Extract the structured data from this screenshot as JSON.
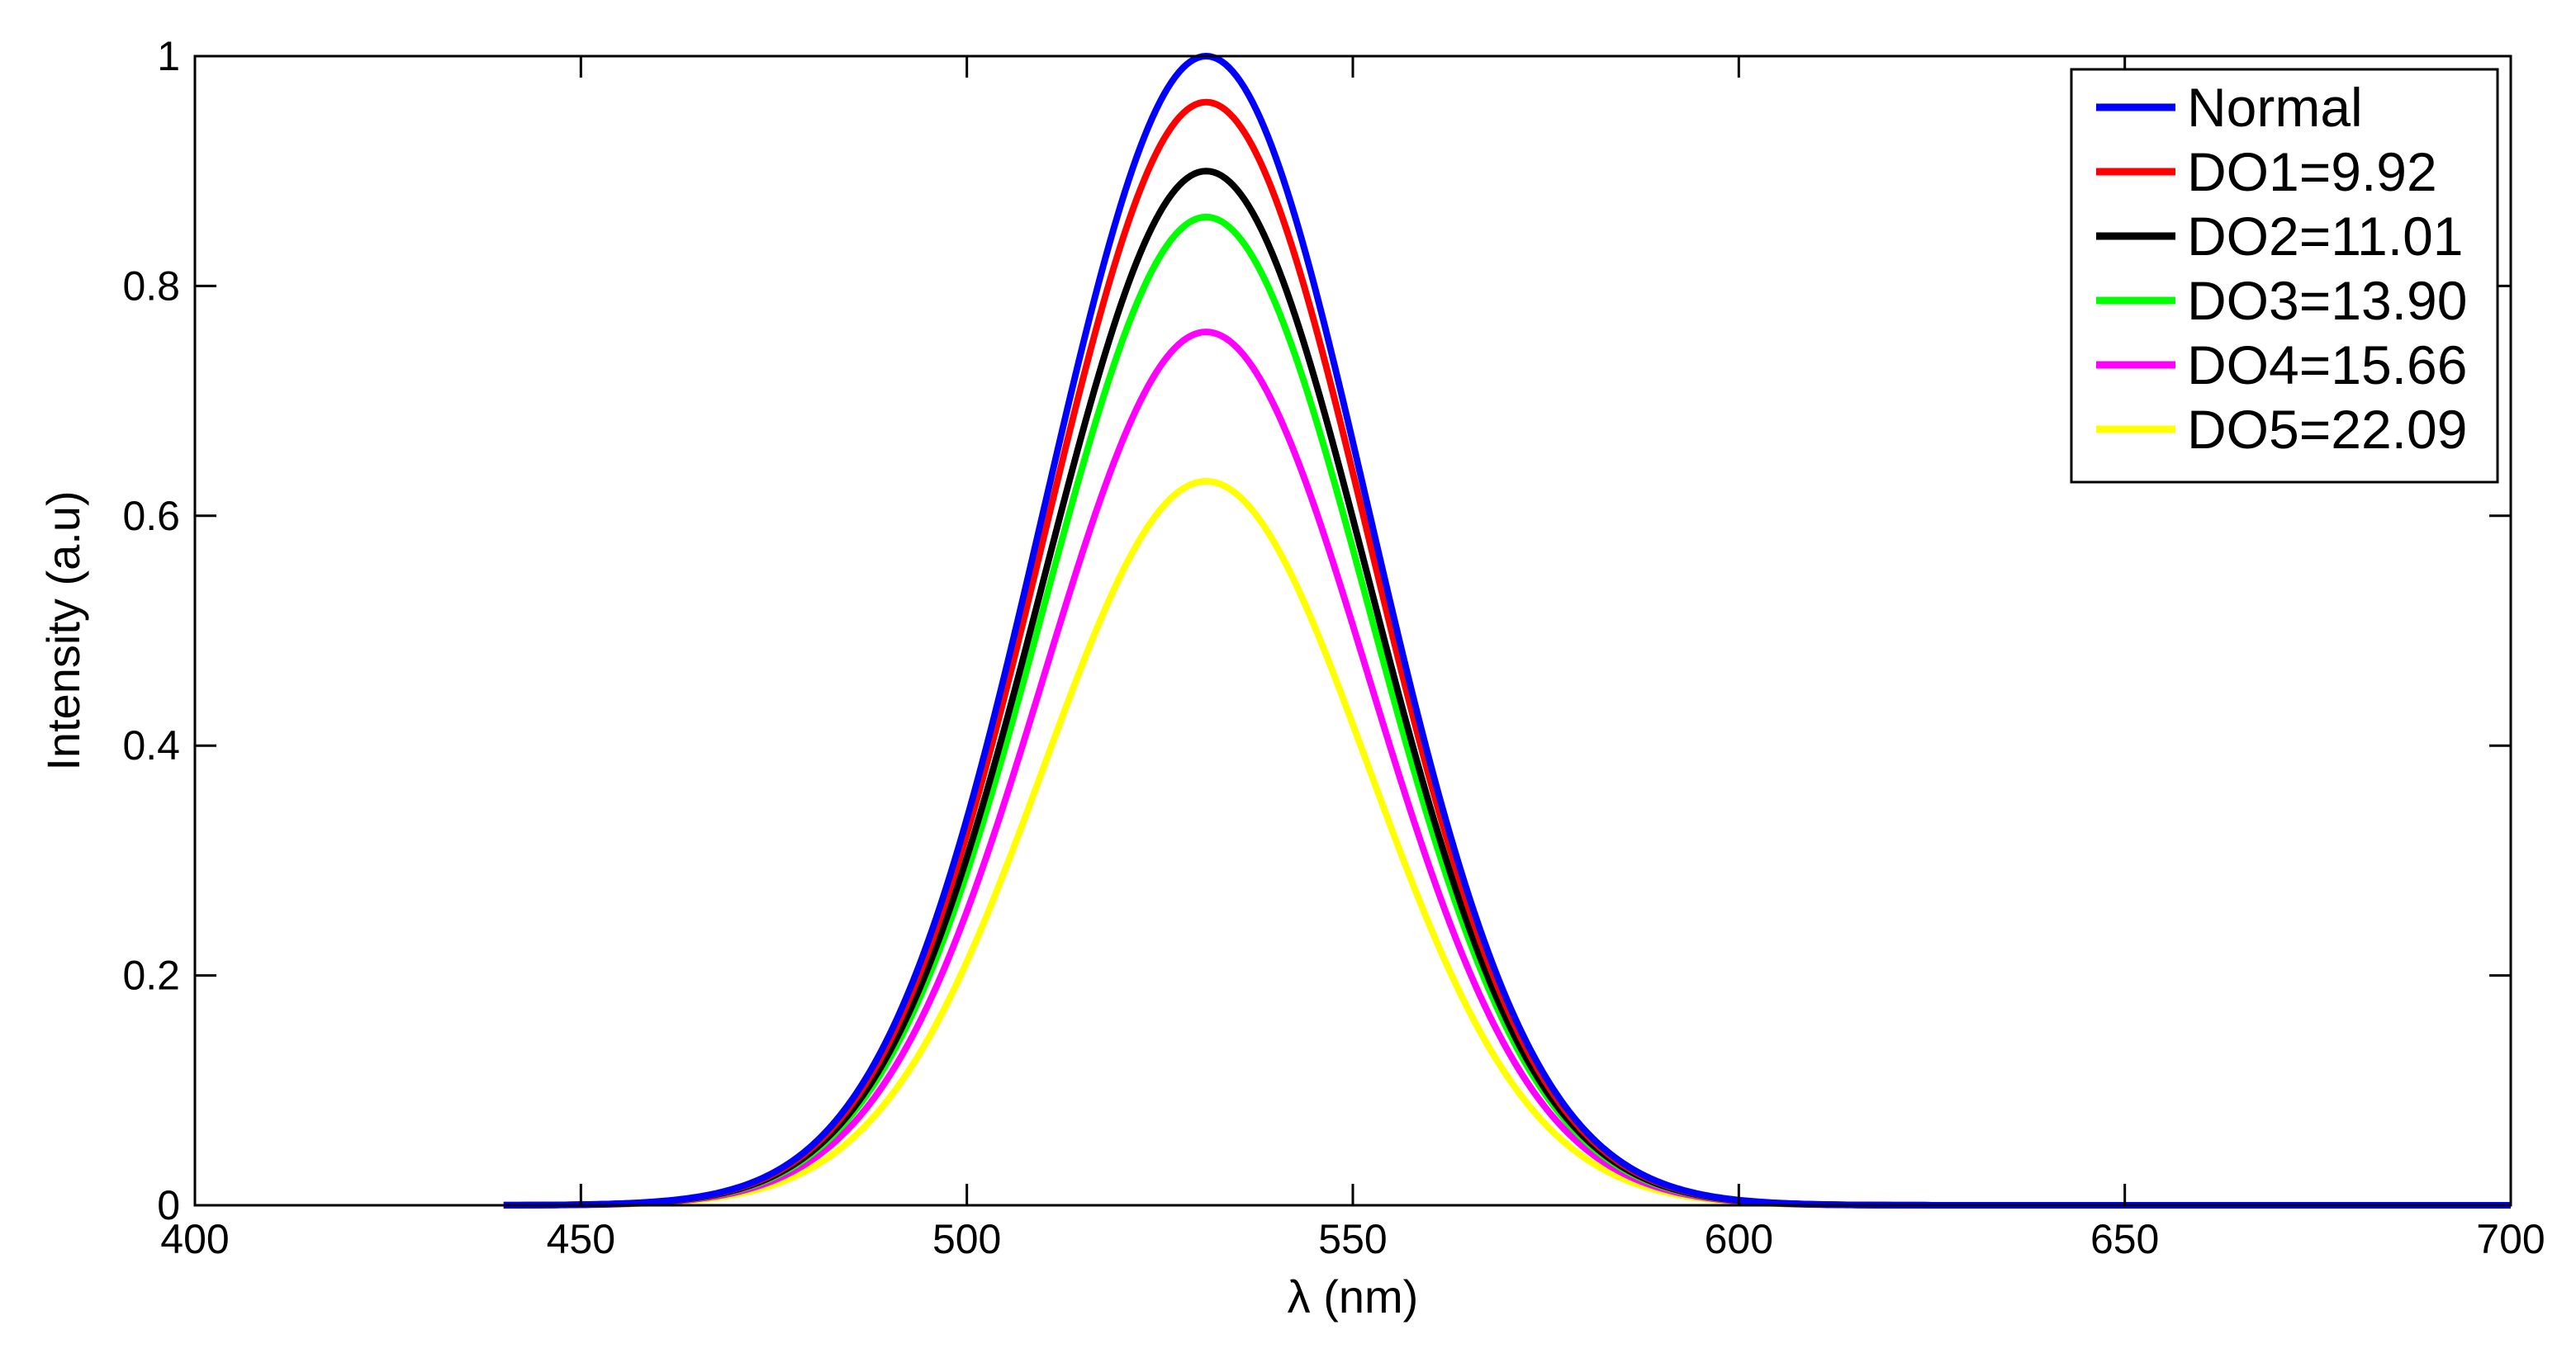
{
  "chart_data": {
    "type": "line",
    "title": "",
    "xlabel": "λ (nm)",
    "ylabel": "Intensity (a.u)",
    "xlim": [
      400,
      700
    ],
    "ylim": [
      0,
      1
    ],
    "xticks": [
      400,
      450,
      500,
      550,
      600,
      650,
      700
    ],
    "xtick_labels": [
      "400",
      "450",
      "500",
      "550",
      "600",
      "650",
      "700"
    ],
    "yticks": [
      0,
      0.2,
      0.4,
      0.6,
      0.8,
      1
    ],
    "ytick_labels": [
      "0",
      "0.2",
      "0.4",
      "0.6",
      "0.8",
      "1"
    ],
    "grid": false,
    "legend_position": "top-right",
    "x_range": [
      440,
      700
    ],
    "peak_x": 531,
    "spread_sigma": 21,
    "series": [
      {
        "name": "Normal",
        "peak": 1.0,
        "color": "#0000ff"
      },
      {
        "name": "DO1=9.92",
        "peak": 0.96,
        "color": "#ff0000"
      },
      {
        "name": "DO2=11.01",
        "peak": 0.9,
        "color": "#000000"
      },
      {
        "name": "DO3=13.90",
        "peak": 0.86,
        "color": "#00ff00"
      },
      {
        "name": "DO4=15.66",
        "peak": 0.76,
        "color": "#ff00ff"
      },
      {
        "name": "DO5=22.09",
        "peak": 0.63,
        "color": "#ffff00"
      }
    ]
  }
}
